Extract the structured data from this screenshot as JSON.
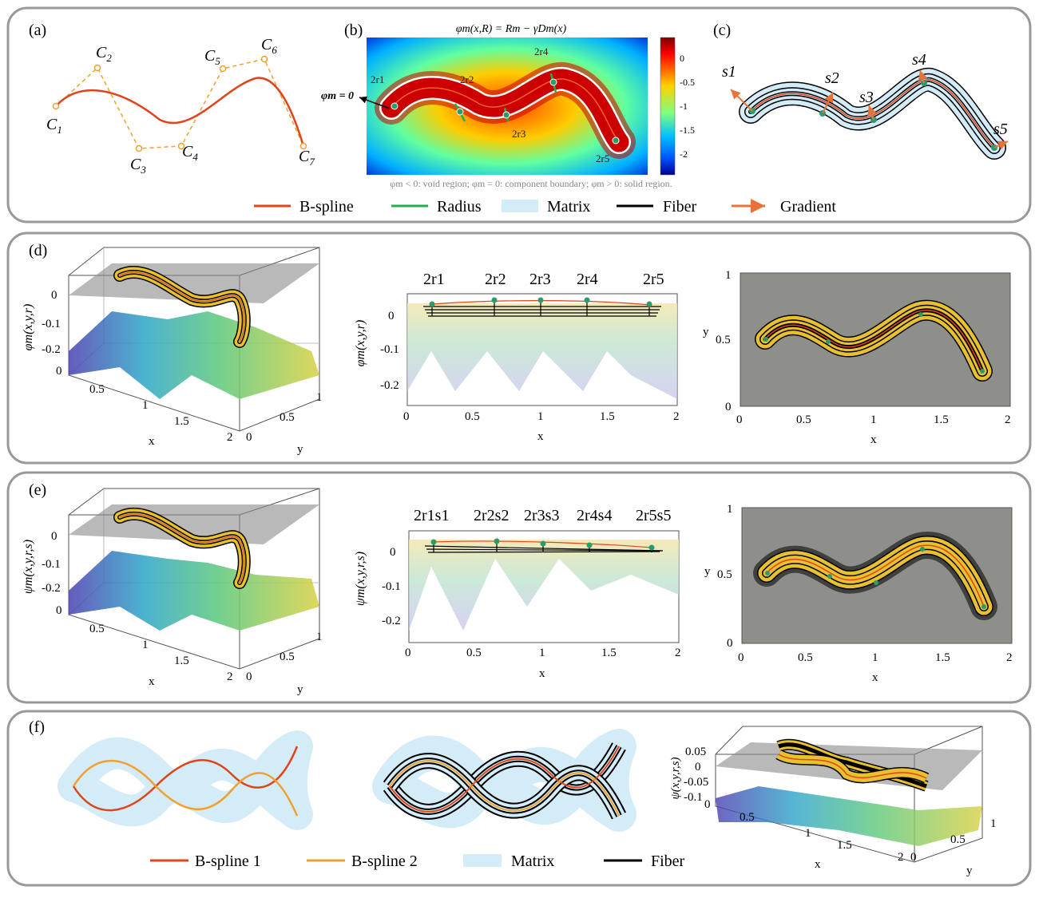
{
  "panel_a": {
    "label": "(a)",
    "points": [
      {
        "c": "C",
        "sub": "1"
      },
      {
        "c": "C",
        "sub": "2"
      },
      {
        "c": "C",
        "sub": "3"
      },
      {
        "c": "C",
        "sub": "4"
      },
      {
        "c": "C",
        "sub": "5"
      },
      {
        "c": "C",
        "sub": "6"
      },
      {
        "c": "C",
        "sub": "7"
      }
    ]
  },
  "panel_b": {
    "label": "(b)",
    "equation": "φm(x,R) = Rm − γDm(x)",
    "zero_label": "φm = 0",
    "radius_labels": [
      "2r1",
      "2r2",
      "2r3",
      "2r4",
      "2r5"
    ],
    "colorbar_ticks": [
      "0",
      "-0.5",
      "-1",
      "-1.5",
      "-2"
    ],
    "caption": "φm < 0: void region; φm = 0: component boundary; φm > 0: solid region."
  },
  "panel_c": {
    "label": "(c)",
    "gradient_labels": [
      "s1",
      "s2",
      "s3",
      "s4",
      "s5"
    ]
  },
  "legend1": [
    "B-spline",
    "Radius",
    "Matrix",
    "Fiber",
    "Gradient"
  ],
  "panel_d": {
    "label": "(d)",
    "zlabel": "φm(x,y,r)",
    "z_ticks": [
      "0",
      "-0.1",
      "-0.2"
    ],
    "x_ticks_3d": [
      "0",
      "0.5",
      "1",
      "1.5",
      "2"
    ],
    "y_ticks_3d": [
      "0",
      "0.5",
      "1"
    ],
    "xlabel": "x",
    "ylabel": "y",
    "radius_labels": [
      "2r1",
      "2r2",
      "2r3",
      "2r4",
      "2r5"
    ],
    "side_x_ticks": [
      "0",
      "0.5",
      "1",
      "1.5",
      "2"
    ],
    "side_y_ticks": [
      "0",
      "-0.1",
      "-0.2"
    ],
    "top_y_ticks": [
      "1",
      "0.5",
      "0"
    ],
    "top_x_ticks": [
      "0",
      "0.5",
      "1",
      "1.5",
      "2"
    ]
  },
  "panel_e": {
    "label": "(e)",
    "zlabel": "ψm(x,y,r,s)",
    "z_ticks": [
      "0",
      "-0.1",
      "-0.2"
    ],
    "x_ticks_3d": [
      "0",
      "0.5",
      "1",
      "1.5",
      "2"
    ],
    "y_ticks_3d": [
      "0",
      "0.5",
      "1"
    ],
    "xlabel": "x",
    "ylabel": "y",
    "radius_labels": [
      "2r1s1",
      "2r2s2",
      "2r3s3",
      "2r4s4",
      "2r5s5"
    ],
    "side_x_ticks": [
      "0",
      "0.5",
      "1",
      "1.5",
      "2"
    ],
    "side_y_ticks": [
      "0",
      "-0.1",
      "-0.2"
    ],
    "top_y_ticks": [
      "1",
      "0.5",
      "0"
    ],
    "top_x_ticks": [
      "0",
      "0.5",
      "1",
      "1.5",
      "2"
    ]
  },
  "panel_f": {
    "label": "(f)",
    "zlabel": "ψ(x,y,r,s)",
    "z_ticks": [
      "0.05",
      "0",
      "-0.05",
      "-0.1"
    ],
    "x_ticks_3d": [
      "0",
      "0.5",
      "1",
      "1.5",
      "2"
    ],
    "y_ticks_3d": [
      "0",
      "0.5",
      "1"
    ],
    "xlabel": "x",
    "ylabel": "y",
    "legend": [
      "B-spline 1",
      "B-spline 2",
      "Matrix",
      "Fiber"
    ]
  }
}
